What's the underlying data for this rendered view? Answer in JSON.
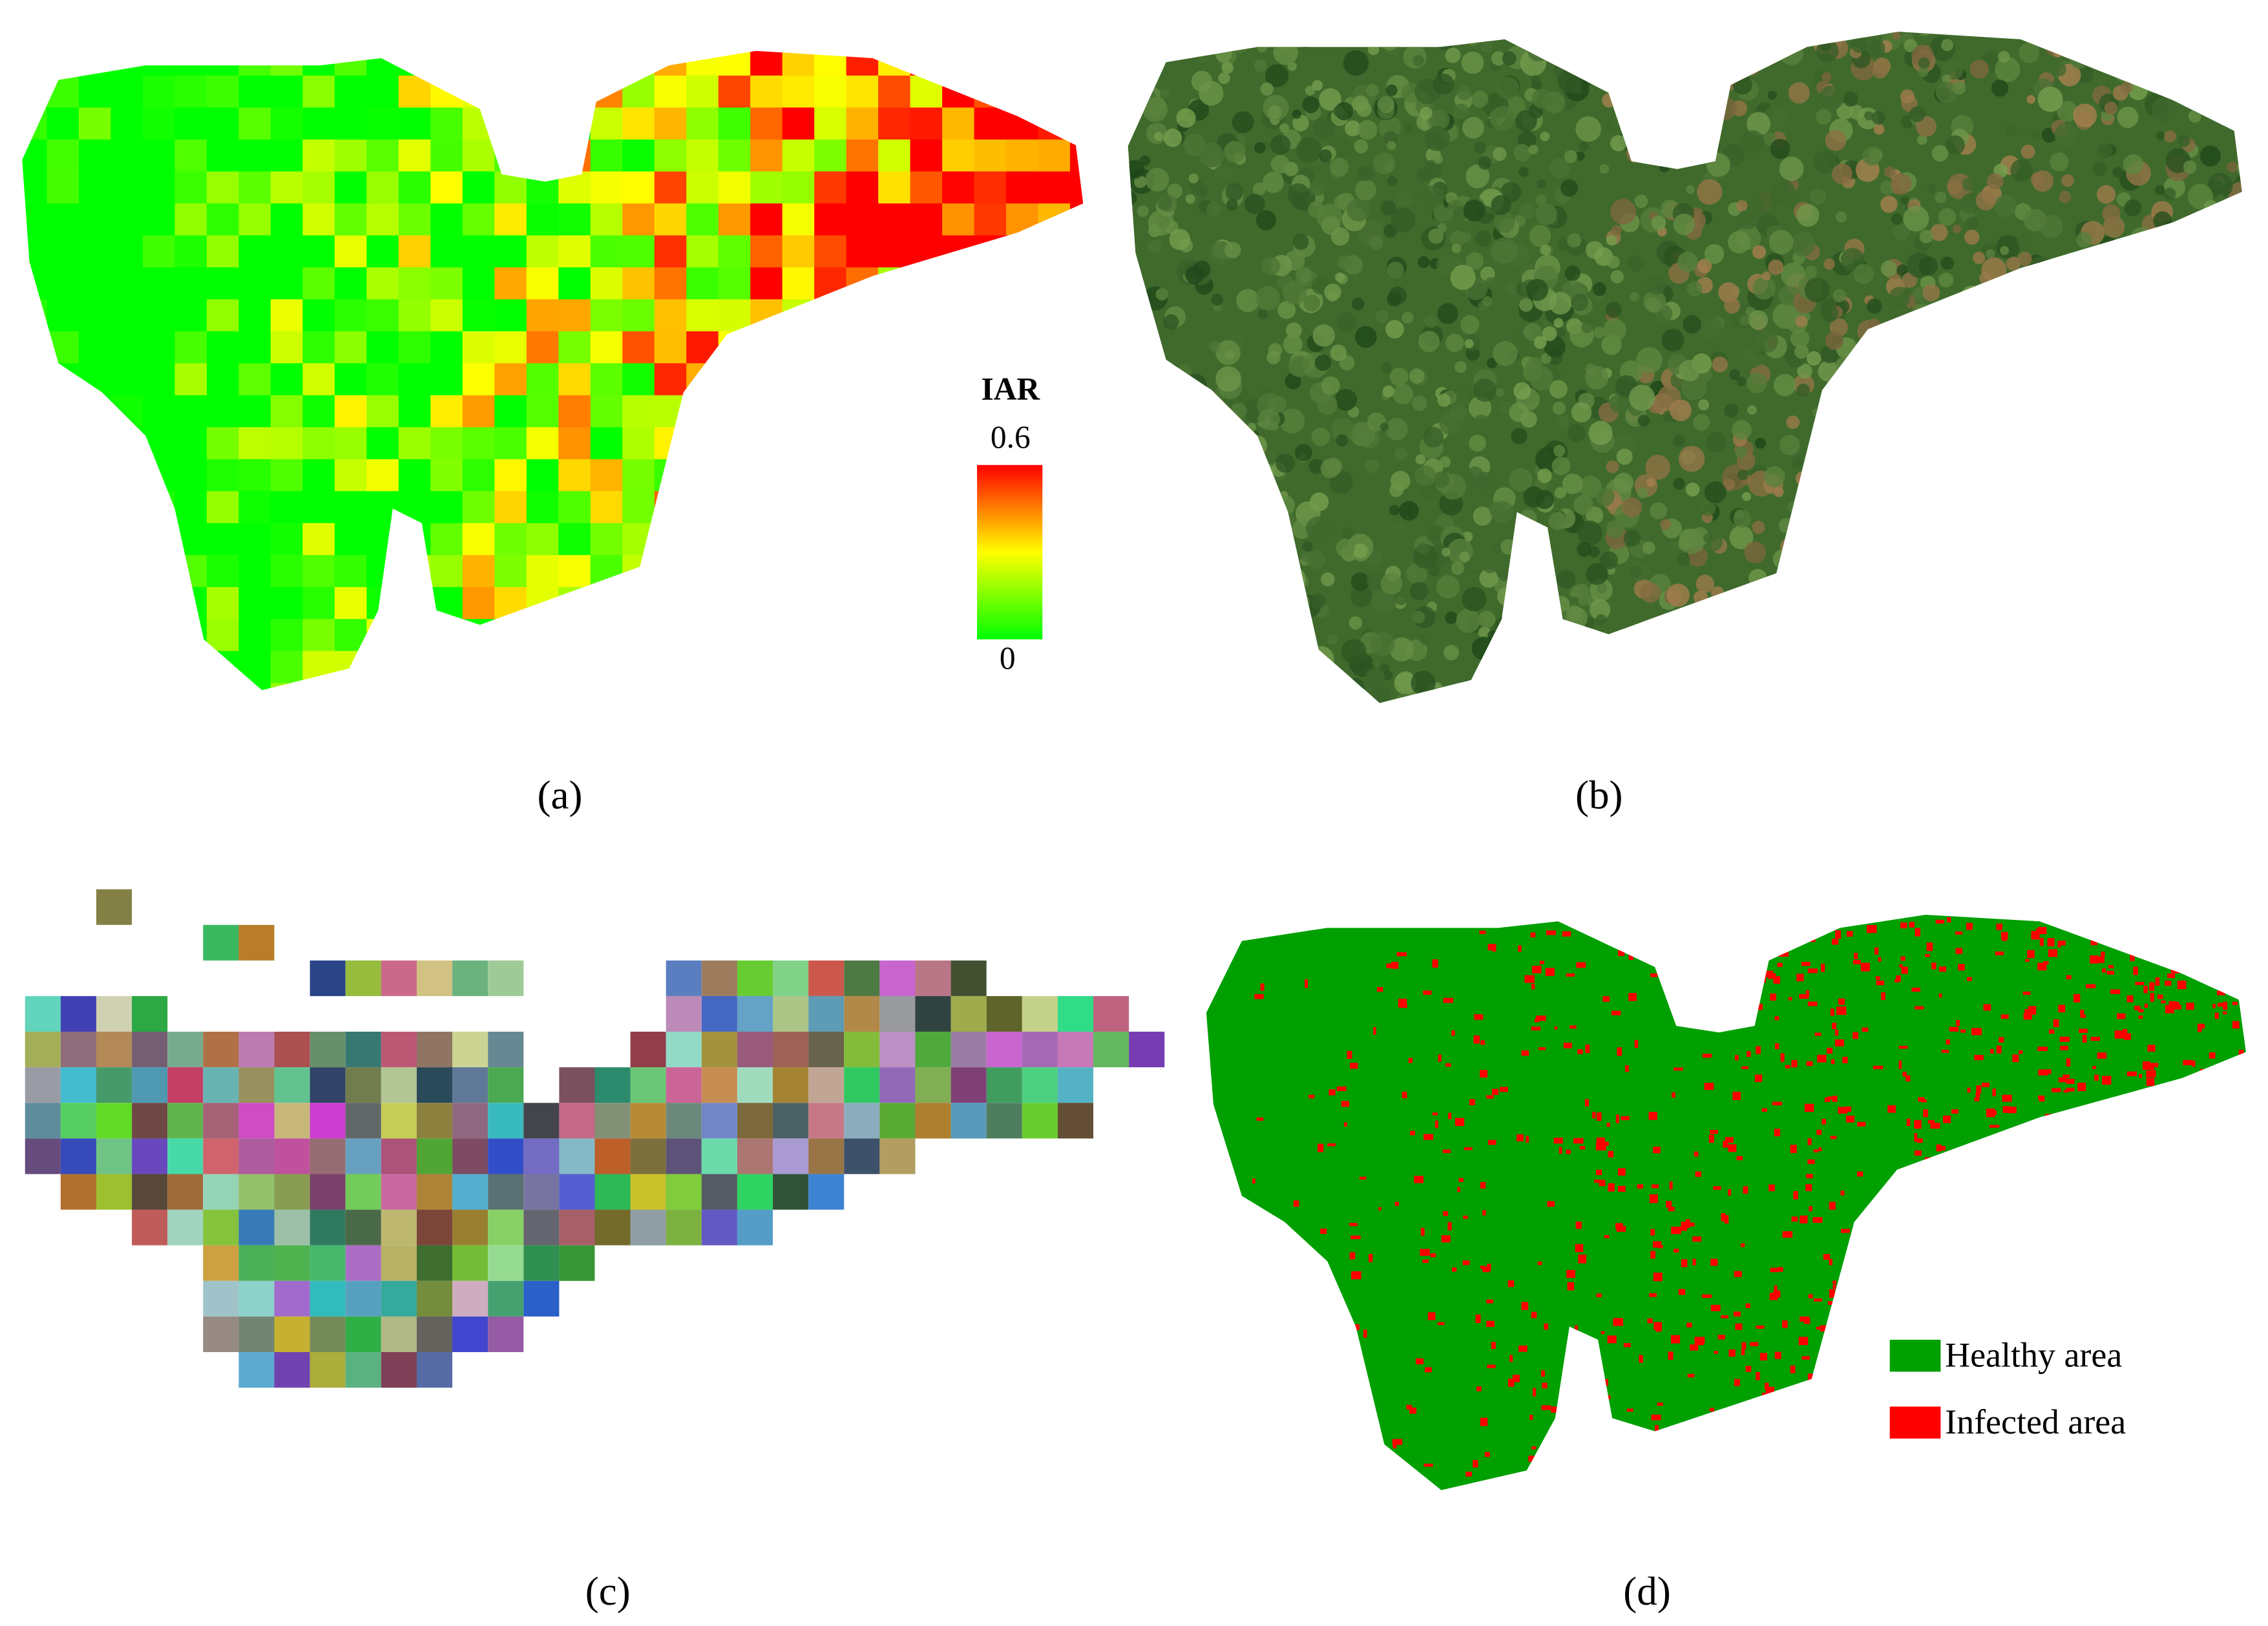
{
  "panels": [
    {
      "label": "(a)"
    },
    {
      "label": "(b)"
    },
    {
      "label": "(c)"
    },
    {
      "label": "(d)"
    }
  ],
  "colorbar": {
    "title": "IAR",
    "max": 0.6,
    "min": 0
  },
  "legend": [
    {
      "label": "Healthy area",
      "color": "#00a000"
    },
    {
      "label": "Infected area",
      "color": "#ff0000"
    }
  ]
}
